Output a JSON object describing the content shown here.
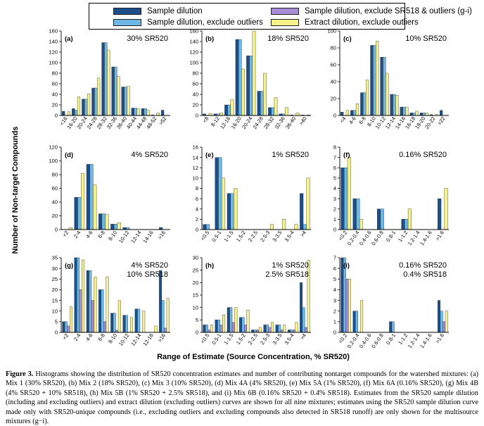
{
  "legend": {
    "items": [
      {
        "label": "Sample dilution",
        "color": "#1a4f8a"
      },
      {
        "label": "Sample dilution, exclude outliers",
        "color": "#6db8e6"
      },
      {
        "label": "Sample dilution, exclude SR518 & outliers (g-i)",
        "color": "#a98bd6"
      },
      {
        "label": "Extract dilution, exclude outliers",
        "color": "#f5f28a"
      }
    ]
  },
  "figure": {
    "ylabel": "Number of Non-target Compounds",
    "xlabel": "Range of Estimate (Source Concentration, % SR520)",
    "panels": [
      {
        "id": "a",
        "label": "(a)",
        "title_lines": [
          "30% SR520"
        ],
        "chart_data": {
          "type": "bar",
          "ymax": 160,
          "yticks": [
            0,
            20,
            40,
            60,
            80,
            100,
            120,
            140,
            160
          ],
          "categories": [
            "<16",
            "16-20",
            "20-24",
            "24-28",
            "28-32",
            "32-36",
            "36-40",
            "40-44",
            "44-48",
            "48-52",
            ">52"
          ],
          "series": [
            {
              "name": "Sample dilution",
              "values": [
                8,
                13,
                31,
                52,
                138,
                92,
                54,
                14,
                13,
                1,
                10
              ]
            },
            {
              "name": "Sample dilution, exclude outliers",
              "values": [
                0,
                10,
                31,
                52,
                138,
                92,
                54,
                14,
                13,
                0,
                0
              ]
            },
            {
              "name": "Extract dilution, exclude outliers",
              "values": [
                7,
                35,
                41,
                71,
                124,
                74,
                55,
                13,
                10,
                5,
                0
              ]
            }
          ]
        }
      },
      {
        "id": "b",
        "label": "(b)",
        "title_lines": [
          "18% SR520"
        ],
        "chart_data": {
          "type": "bar",
          "ymax": 160,
          "yticks": [
            0,
            20,
            40,
            60,
            80,
            100,
            120,
            140,
            160
          ],
          "categories": [
            "<8",
            "8-12",
            "12-16",
            "16-20",
            "20-24",
            "24-28",
            "28-32",
            "32-36",
            "36-40",
            ">40"
          ],
          "series": [
            {
              "name": "Sample dilution",
              "values": [
                3,
                3,
                20,
                144,
                113,
                46,
                15,
                3,
                1,
                1
              ]
            },
            {
              "name": "Sample dilution, exclude outliers",
              "values": [
                0,
                3,
                20,
                144,
                113,
                46,
                15,
                3,
                0,
                0
              ]
            },
            {
              "name": "Extract dilution, exclude outliers",
              "values": [
                4,
                5,
                30,
                88,
                160,
                80,
                34,
                15,
                5,
                1
              ]
            }
          ]
        }
      },
      {
        "id": "c",
        "label": "(c)",
        "title_lines": [
          "10% SR520"
        ],
        "chart_data": {
          "type": "bar",
          "ymax": 100,
          "yticks": [
            0,
            20,
            40,
            60,
            80,
            100
          ],
          "categories": [
            "<4",
            "4-6",
            "6-8",
            "8-10",
            "10-12",
            "12-14",
            "14-16",
            "16-18",
            "18-20",
            "20-22",
            ">22"
          ],
          "series": [
            {
              "name": "Sample dilution",
              "values": [
                4,
                6,
                27,
                83,
                69,
                25,
                10,
                3,
                3,
                1,
                6
              ]
            },
            {
              "name": "Sample dilution, exclude outliers",
              "values": [
                0,
                6,
                27,
                83,
                69,
                25,
                10,
                3,
                3,
                0,
                0
              ]
            },
            {
              "name": "Extract dilution, exclude outliers",
              "values": [
                6,
                14,
                42,
                88,
                50,
                24,
                10,
                5,
                3,
                1,
                0
              ]
            }
          ]
        }
      },
      {
        "id": "d",
        "label": "(d)",
        "title_lines": [
          "4% SR520"
        ],
        "chart_data": {
          "type": "bar",
          "ymax": 120,
          "yticks": [
            0,
            20,
            40,
            60,
            80,
            100,
            120
          ],
          "categories": [
            "<2",
            "2-4",
            "4-6",
            "6-8",
            "8-10",
            "10-12",
            "12-14",
            "14-16",
            ">16"
          ],
          "series": [
            {
              "name": "Sample dilution",
              "values": [
                0,
                47,
                95,
                23,
                8,
                3,
                0,
                0,
                3
              ]
            },
            {
              "name": "Sample dilution, exclude outliers",
              "values": [
                0,
                47,
                95,
                23,
                8,
                3,
                0,
                0,
                0
              ]
            },
            {
              "name": "Extract dilution, exclude outliers",
              "values": [
                3,
                82,
                65,
                22,
                10,
                0,
                0,
                0,
                0
              ]
            }
          ]
        }
      },
      {
        "id": "e",
        "label": "(e)",
        "title_lines": [
          "1% SR520"
        ],
        "chart_data": {
          "type": "bar",
          "ymax": 16,
          "yticks": [
            0,
            2,
            4,
            6,
            8,
            10,
            12,
            14,
            16
          ],
          "categories": [
            "<0.5",
            "0.5-1",
            "1-1.5",
            "1.5-2",
            "2-2.5",
            "2.5-3",
            "3-3.5",
            "3.5-4",
            ">4"
          ],
          "series": [
            {
              "name": "Sample dilution",
              "values": [
                1,
                14,
                7,
                0,
                0,
                0,
                0,
                0,
                7
              ]
            },
            {
              "name": "Sample dilution, exclude outliers",
              "values": [
                1,
                14,
                7,
                0,
                0,
                0,
                0,
                0,
                1
              ]
            },
            {
              "name": "Extract dilution, exclude outliers",
              "values": [
                0,
                10,
                8,
                0,
                0,
                1,
                2,
                1,
                10
              ]
            }
          ]
        }
      },
      {
        "id": "f",
        "label": "(f)",
        "title_lines": [
          "0.16% SR520"
        ],
        "chart_data": {
          "type": "bar",
          "ymax": 8,
          "yticks": [
            0,
            1,
            2,
            3,
            4,
            5,
            6,
            7,
            8
          ],
          "categories": [
            "<0.2",
            "0.2-0.4",
            "0.4-0.6",
            "0.6-0.8",
            "0.8-1",
            "1-1.2",
            "1.2-1.4",
            "1.4-1.6",
            ">1.6"
          ],
          "series": [
            {
              "name": "Sample dilution",
              "values": [
                6,
                3,
                0,
                2,
                0,
                1,
                0,
                0,
                3
              ]
            },
            {
              "name": "Sample dilution, exclude outliers",
              "values": [
                6,
                3,
                0,
                2,
                0,
                1,
                0,
                0,
                0
              ]
            },
            {
              "name": "Extract dilution, exclude outliers",
              "values": [
                7,
                1,
                0,
                0,
                0,
                2,
                0,
                0,
                4
              ]
            }
          ]
        }
      },
      {
        "id": "g",
        "label": "(g)",
        "title_lines": [
          "4% SR520",
          "10% SR518"
        ],
        "chart_data": {
          "type": "bar",
          "ymax": 35,
          "yticks": [
            0,
            5,
            10,
            15,
            20,
            25,
            30,
            35
          ],
          "categories": [
            "<2",
            "2-4",
            "4-6",
            "6-8",
            "8-10",
            "10-12",
            "12-14",
            "12-16",
            ">16"
          ],
          "series": [
            {
              "name": "Sample dilution",
              "values": [
                5,
                35,
                29,
                20,
                9,
                8,
                11,
                0,
                29
              ]
            },
            {
              "name": "Sample dilution, exclude outliers",
              "values": [
                5,
                35,
                29,
                20,
                9,
                8,
                11,
                0,
                15
              ]
            },
            {
              "name": "Sample dilution, exclude SR518 & outliers (g-i)",
              "values": [
                3,
                20,
                15,
                5,
                1,
                0,
                0,
                0,
                2
              ]
            },
            {
              "name": "Extract dilution, exclude outliers",
              "values": [
                12,
                34,
                26,
                26,
                15,
                7,
                10,
                3,
                16
              ]
            }
          ]
        }
      },
      {
        "id": "h",
        "label": "(h)",
        "title_lines": [
          "1% SR520",
          "2.5% SR518"
        ],
        "chart_data": {
          "type": "bar",
          "ymax": 30,
          "yticks": [
            0,
            5,
            10,
            15,
            20,
            25,
            30
          ],
          "categories": [
            "<0.5",
            "0.5-1",
            "1-1.5",
            "1.5-2",
            "2-2.5",
            "2.5-3",
            "3-3.5",
            "3.5-4",
            ">4"
          ],
          "series": [
            {
              "name": "Sample dilution",
              "values": [
                3,
                5,
                10,
                6,
                1,
                3,
                3,
                1,
                20
              ]
            },
            {
              "name": "Sample dilution, exclude outliers",
              "values": [
                3,
                5,
                10,
                6,
                1,
                3,
                3,
                1,
                10
              ]
            },
            {
              "name": "Sample dilution, exclude SR518 & outliers (g-i)",
              "values": [
                1,
                3,
                4,
                3,
                1,
                2,
                1,
                1,
                2
              ]
            },
            {
              "name": "Extract dilution, exclude outliers",
              "values": [
                3,
                7,
                10,
                9,
                2,
                4,
                3,
                4,
                29
              ]
            }
          ]
        }
      },
      {
        "id": "i",
        "label": "(i)",
        "title_lines": [
          "0.16% SR520",
          "0.4% SR518"
        ],
        "chart_data": {
          "type": "bar",
          "ymax": 7,
          "yticks": [
            0,
            1,
            2,
            3,
            4,
            5,
            6,
            7
          ],
          "categories": [
            "<0.2",
            "0.2-0.4",
            "0.4-0.6",
            "0.6-0.8",
            "0.8-1",
            "1-1.2",
            "1.2-1.4",
            "1.4-1.6",
            ">1.6"
          ],
          "series": [
            {
              "name": "Sample dilution",
              "values": [
                7,
                2,
                0,
                0,
                1,
                0,
                0,
                0,
                3
              ]
            },
            {
              "name": "Sample dilution, exclude outliers",
              "values": [
                7,
                2,
                0,
                0,
                1,
                0,
                0,
                0,
                2
              ]
            },
            {
              "name": "Sample dilution, exclude SR518 & outliers (g-i)",
              "values": [
                5,
                0,
                0,
                0,
                0,
                0,
                0,
                0,
                1
              ]
            },
            {
              "name": "Extract dilution, exclude outliers",
              "values": [
                5,
                3,
                0,
                0,
                0,
                0,
                0,
                0,
                2
              ]
            }
          ]
        }
      }
    ]
  },
  "caption": {
    "label": "Figure 3.",
    "text": "Histograms showing the distribution of SR520 concentration estimates and number of contributing nontarget compounds for the watershed mixtures: (a) Mix 1 (30% SR520), (b) Mix 2 (18% SR520), (c) Mix 3 (10% SR520), (d) Mix 4A (4% SR520), (e) Mix 5A (1% SR520), (f) Mix 6A (0.16% SR520), (g) Mix 4B (4% SR520 + 10% SR518), (h) Mix 5B (1% SR520 + 2.5% SR518), and (i) Mix 6B (0.16% SR520 + 0.4% SR518). Estimates from the SR520 sample dilution (including and excluding outliers) and extract dilution (excluding outliers) curves are shown for all nine mixtures; estimates using the SR520 sample dilution curve made only with SR520-unique compounds (i.e., excluding outliers and excluding compounds also detected in SR518 runoff) are only shown for the multisource mixtures (g−i)."
  }
}
